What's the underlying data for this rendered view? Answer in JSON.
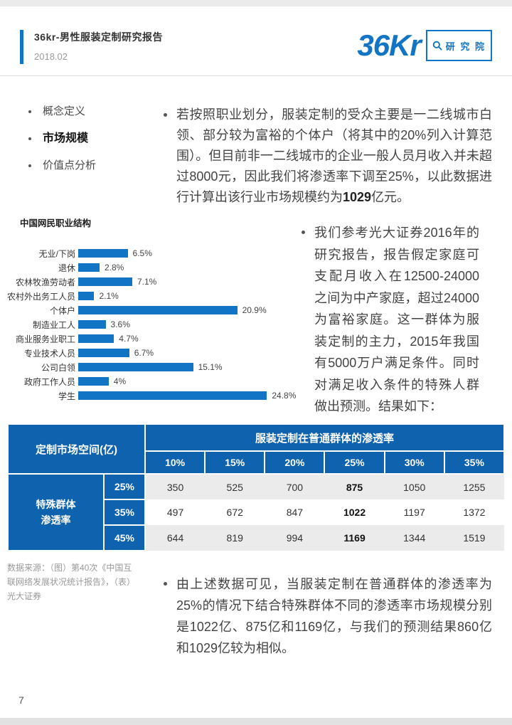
{
  "page": {
    "page_number": "7"
  },
  "header": {
    "title": "36kr-男性服装定制研究报告",
    "date": "2018.02",
    "logo_text": "36Kr",
    "logo_badge": "研 究 院"
  },
  "sidebar": {
    "items": [
      {
        "label": "概念定义",
        "active": false
      },
      {
        "label": "市场规模",
        "active": true
      },
      {
        "label": "价值点分析",
        "active": false
      }
    ]
  },
  "paragraphs": {
    "p1_pre": "若按照职业划分，服装定制的受众主要是一二线城市白领、部分较为富裕的个体户（将其中的20%列入计算范围）。但目前非一二线城市的企业一般人员月收入并未超过8000元，因此我们将渗透率下调至25%，以此数据进行计算出该行业市场规模约为",
    "p1_bold": "1029",
    "p1_post": "亿元。",
    "p2": "我们参考光大证券2016年的研究报告，报告假定家庭可支配月收入在12500-24000之间为中产家庭，超过24000为富裕家庭。这一群体为服装定制的主力，2015年我国有5000万户满足条件。同时对满足收入条件的特殊人群做出预测。结果如下：",
    "p3": "由上述数据可见，当服装定制在普通群体的渗透率为25%的情况下结合特殊群体不同的渗透率市场规模分别是1022亿、875亿和1169亿，与我们的预测结果860亿和1029亿较为相似。"
  },
  "chart_data": {
    "type": "bar",
    "orientation": "horizontal",
    "title": "中国网民职业结构",
    "categories": [
      "无业/下岗",
      "退休",
      "农林牧渔劳动者",
      "农村外出务工人员",
      "个体户",
      "制造业工人",
      "商业服务业职工",
      "专业技术人员",
      "公司白领",
      "政府工作人员",
      "学生"
    ],
    "values": [
      6.5,
      2.8,
      7.1,
      2.1,
      20.9,
      3.6,
      4.7,
      6.7,
      15.1,
      4,
      24.8
    ],
    "value_labels": [
      "6.5%",
      "2.8%",
      "7.1%",
      "2.1%",
      "20.9%",
      "3.6%",
      "4.7%",
      "6.7%",
      "15.1%",
      "4%",
      "24.8%"
    ],
    "bar_color": "#1274c4",
    "xlim": [
      0,
      26
    ],
    "grid": false,
    "legend": false
  },
  "table": {
    "corner_label": "定制市场空间(亿)",
    "col_group_label": "服装定制在普通群体的渗透率",
    "col_headers": [
      "10%",
      "15%",
      "20%",
      "25%",
      "30%",
      "35%"
    ],
    "row_group_label": "特殊群体\n渗透率",
    "bold_col_index": 3,
    "rows": [
      {
        "label": "25%",
        "values": [
          "350",
          "525",
          "700",
          "875",
          "1050",
          "1255"
        ]
      },
      {
        "label": "35%",
        "values": [
          "497",
          "672",
          "847",
          "1022",
          "1197",
          "1372"
        ]
      },
      {
        "label": "45%",
        "values": [
          "644",
          "819",
          "994",
          "1169",
          "1344",
          "1519"
        ]
      }
    ]
  },
  "source": {
    "text": "数据来源：（图）第40次《中国互联网络发展状况统计报告》，（表）光大证券"
  },
  "colors": {
    "accent": "#1274c4",
    "table_header_blue": "#0f63ae",
    "bar_blue": "#1274c4"
  }
}
